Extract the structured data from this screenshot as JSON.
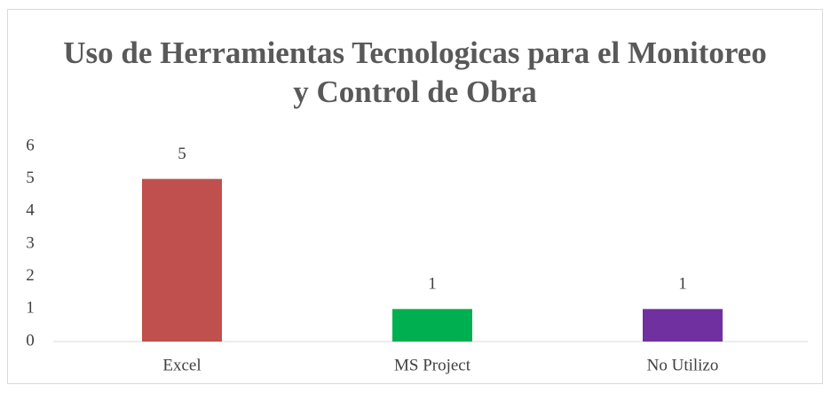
{
  "chart_data": {
    "type": "bar",
    "title": "Uso de Herramientas Tecnologicas para el Monitoreo y Control de Obra",
    "categories": [
      "Excel",
      "MS Project",
      "No Utilizo"
    ],
    "values": [
      5,
      1,
      1
    ],
    "colors": [
      "#c0504d",
      "#00b050",
      "#7030a0"
    ],
    "ylim": [
      0,
      6
    ],
    "yticks": [
      0,
      1,
      2,
      3,
      4,
      5,
      6
    ],
    "grid": false
  }
}
